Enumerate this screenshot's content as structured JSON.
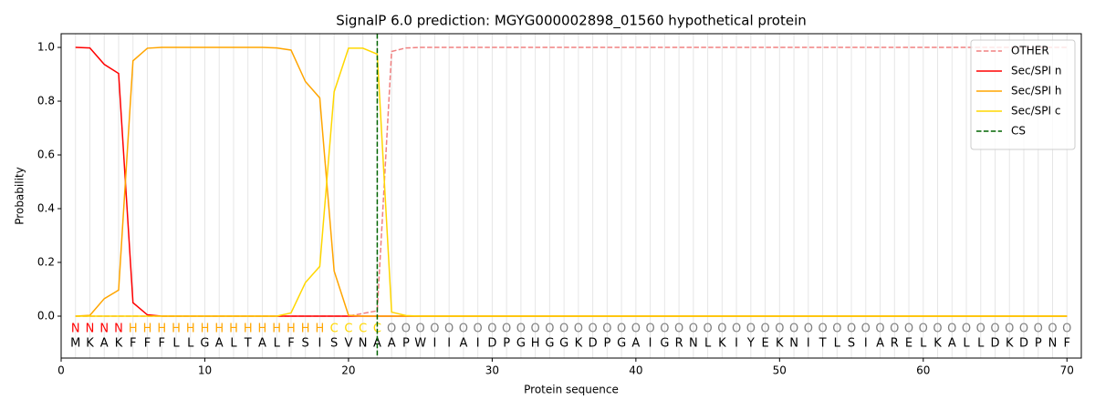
{
  "chart_data": {
    "type": "line",
    "title": "SignalP 6.0 prediction: MGYG000002898_01560 hypothetical protein",
    "xlabel": "Protein sequence",
    "ylabel": "Probability",
    "x": [
      1,
      2,
      3,
      4,
      5,
      6,
      7,
      8,
      9,
      10,
      11,
      12,
      13,
      14,
      15,
      16,
      17,
      18,
      19,
      20,
      21,
      22,
      23,
      24,
      25,
      26,
      27,
      28,
      29,
      30,
      31,
      32,
      33,
      34,
      35,
      36,
      37,
      38,
      39,
      40,
      41,
      42,
      43,
      44,
      45,
      46,
      47,
      48,
      49,
      50,
      51,
      52,
      53,
      54,
      55,
      56,
      57,
      58,
      59,
      60,
      61,
      62,
      63,
      64,
      65,
      66,
      67,
      68,
      69,
      70
    ],
    "sequence": [
      "M",
      "K",
      "A",
      "K",
      "F",
      "F",
      "F",
      "L",
      "L",
      "G",
      "A",
      "L",
      "T",
      "A",
      "L",
      "F",
      "S",
      "I",
      "S",
      "V",
      "N",
      "A",
      "A",
      "P",
      "W",
      "I",
      "I",
      "A",
      "I",
      "D",
      "P",
      "G",
      "H",
      "G",
      "G",
      "K",
      "D",
      "P",
      "G",
      "A",
      "I",
      "G",
      "R",
      "N",
      "L",
      "K",
      "I",
      "Y",
      "E",
      "K",
      "N",
      "I",
      "T",
      "L",
      "S",
      "I",
      "A",
      "R",
      "E",
      "L",
      "K",
      "A",
      "L",
      "L",
      "D",
      "K",
      "D",
      "P",
      "N",
      "F"
    ],
    "labels": [
      "N",
      "N",
      "N",
      "N",
      "H",
      "H",
      "H",
      "H",
      "H",
      "H",
      "H",
      "H",
      "H",
      "H",
      "H",
      "H",
      "H",
      "H",
      "C",
      "C",
      "C",
      "C",
      "O",
      "O",
      "O",
      "O",
      "O",
      "O",
      "O",
      "O",
      "O",
      "O",
      "O",
      "O",
      "O",
      "O",
      "O",
      "O",
      "O",
      "O",
      "O",
      "O",
      "O",
      "O",
      "O",
      "O",
      "O",
      "O",
      "O",
      "O",
      "O",
      "O",
      "O",
      "O",
      "O",
      "O",
      "O",
      "O",
      "O",
      "O",
      "O",
      "O",
      "O",
      "O",
      "O",
      "O",
      "O",
      "O",
      "O",
      "O"
    ],
    "label_colors": {
      "N": "#ff0000",
      "H": "#ffa500",
      "C": "#ffd700",
      "O": "#808080"
    },
    "series": [
      {
        "name": "OTHER",
        "color": "#f08080",
        "dashed": true,
        "values": [
          0,
          0,
          0,
          0,
          0,
          0,
          0,
          0,
          0,
          0,
          0,
          0,
          0,
          0,
          0,
          0,
          0,
          0,
          0,
          0,
          0.01,
          0.02,
          0.985,
          0.998,
          1,
          1,
          1,
          1,
          1,
          1,
          1,
          1,
          1,
          1,
          1,
          1,
          1,
          1,
          1,
          1,
          1,
          1,
          1,
          1,
          1,
          1,
          1,
          1,
          1,
          1,
          1,
          1,
          1,
          1,
          1,
          1,
          1,
          1,
          1,
          1,
          1,
          1,
          1,
          1,
          1,
          1,
          1,
          1,
          1,
          1
        ]
      },
      {
        "name": "Sec/SPI n",
        "color": "#ff0000",
        "dashed": false,
        "values": [
          1.0,
          0.998,
          0.937,
          0.903,
          0.05,
          0.005,
          0,
          0,
          0,
          0,
          0,
          0,
          0,
          0,
          0,
          0,
          0,
          0,
          0,
          0,
          0,
          0,
          0,
          0,
          0,
          0,
          0,
          0,
          0,
          0,
          0,
          0,
          0,
          0,
          0,
          0,
          0,
          0,
          0,
          0,
          0,
          0,
          0,
          0,
          0,
          0,
          0,
          0,
          0,
          0,
          0,
          0,
          0,
          0,
          0,
          0,
          0,
          0,
          0,
          0,
          0,
          0,
          0,
          0,
          0,
          0,
          0,
          0,
          0,
          0
        ]
      },
      {
        "name": "Sec/SPI h",
        "color": "#ffa500",
        "dashed": false,
        "values": [
          0,
          0.003,
          0.065,
          0.097,
          0.95,
          0.997,
          1,
          1,
          1,
          1,
          1,
          1,
          1,
          1,
          0.998,
          0.99,
          0.873,
          0.812,
          0.168,
          0.003,
          0,
          0,
          0,
          0,
          0,
          0,
          0,
          0,
          0,
          0,
          0,
          0,
          0,
          0,
          0,
          0,
          0,
          0,
          0,
          0,
          0,
          0,
          0,
          0,
          0,
          0,
          0,
          0,
          0,
          0,
          0,
          0,
          0,
          0,
          0,
          0,
          0,
          0,
          0,
          0,
          0,
          0,
          0,
          0,
          0,
          0,
          0,
          0,
          0,
          0
        ]
      },
      {
        "name": "Sec/SPI c",
        "color": "#ffd700",
        "dashed": false,
        "values": [
          0,
          0,
          0,
          0,
          0,
          0,
          0,
          0,
          0,
          0,
          0,
          0,
          0,
          0,
          0,
          0.012,
          0.125,
          0.185,
          0.835,
          0.997,
          0.997,
          0.975,
          0.015,
          0.002,
          0,
          0,
          0,
          0,
          0,
          0,
          0,
          0,
          0,
          0,
          0,
          0,
          0,
          0,
          0,
          0,
          0,
          0,
          0,
          0,
          0,
          0,
          0,
          0,
          0,
          0,
          0,
          0,
          0,
          0,
          0,
          0,
          0,
          0,
          0,
          0,
          0,
          0,
          0,
          0,
          0,
          0,
          0,
          0,
          0,
          0
        ]
      }
    ],
    "markers": [
      {
        "name": "CS",
        "color": "#006400",
        "x": 22
      }
    ],
    "xlim": [
      0,
      71
    ],
    "xticks": [
      0,
      10,
      20,
      30,
      40,
      50,
      60,
      70
    ],
    "ylim": [
      -0.156,
      1.051
    ],
    "yticks": [
      {
        "value": 0,
        "label": "0.0"
      },
      {
        "value": 0.2,
        "label": "0.2"
      },
      {
        "value": 0.4,
        "label": "0.4"
      },
      {
        "value": 0.6,
        "label": "0.6"
      },
      {
        "value": 0.8,
        "label": "0.8"
      },
      {
        "value": 1,
        "label": "1.0"
      }
    ],
    "legend": "upper right"
  }
}
